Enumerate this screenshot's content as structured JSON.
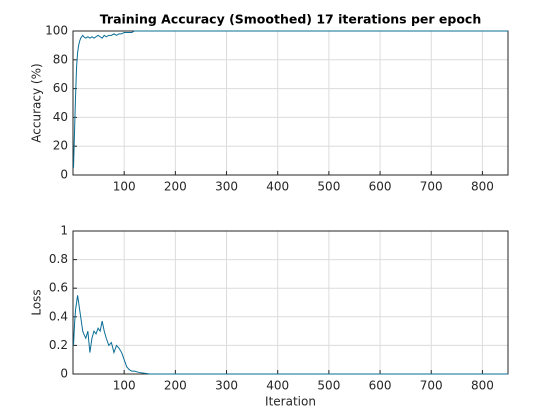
{
  "chart_data": [
    {
      "type": "line",
      "title": "Training Accuracy (Smoothed) 17 iterations per epoch",
      "y_label": "Accuracy (%)",
      "x": [
        1,
        3,
        5,
        7,
        9,
        11,
        13,
        15,
        17,
        19,
        21,
        25,
        29,
        33,
        37,
        41,
        45,
        49,
        53,
        57,
        61,
        65,
        70,
        75,
        80,
        85,
        90,
        95,
        100,
        105,
        110,
        115,
        120,
        130,
        140,
        150,
        850
      ],
      "series": [
        {
          "color": "#0a6e96",
          "values": [
            5,
            30,
            55,
            75,
            85,
            90,
            93,
            95,
            96,
            97,
            96,
            95,
            96,
            95,
            96,
            95,
            96,
            97,
            96,
            95,
            97,
            96,
            97,
            97,
            98,
            97,
            98,
            98,
            99,
            99,
            99,
            99,
            100,
            100,
            100,
            100,
            100
          ]
        }
      ],
      "xlim": [
        0,
        850
      ],
      "xticks": [
        100,
        200,
        300,
        400,
        500,
        600,
        700,
        800
      ],
      "ylim": [
        0,
        100
      ],
      "yticks": [
        0,
        20,
        40,
        60,
        80,
        100
      ],
      "grid": true
    },
    {
      "type": "line",
      "x_label": "Iteration",
      "y_label": "Loss",
      "x": [
        1,
        3,
        5,
        7,
        9,
        11,
        13,
        15,
        17,
        19,
        21,
        25,
        29,
        33,
        37,
        41,
        45,
        49,
        53,
        57,
        61,
        65,
        70,
        75,
        80,
        85,
        90,
        95,
        100,
        105,
        110,
        115,
        120,
        130,
        140,
        150,
        850
      ],
      "series": [
        {
          "color": "#0a6e96",
          "values": [
            0.2,
            0.35,
            0.45,
            0.5,
            0.55,
            0.5,
            0.45,
            0.4,
            0.35,
            0.3,
            0.28,
            0.25,
            0.3,
            0.15,
            0.25,
            0.3,
            0.28,
            0.32,
            0.3,
            0.37,
            0.3,
            0.25,
            0.2,
            0.22,
            0.15,
            0.2,
            0.18,
            0.15,
            0.1,
            0.05,
            0.03,
            0.02,
            0.02,
            0.01,
            0.005,
            0,
            0
          ]
        }
      ],
      "xlim": [
        0,
        850
      ],
      "xticks": [
        100,
        200,
        300,
        400,
        500,
        600,
        700,
        800
      ],
      "ylim": [
        0,
        1
      ],
      "yticks": [
        0,
        0.2,
        0.4,
        0.6,
        0.8,
        1
      ],
      "grid": true
    }
  ]
}
